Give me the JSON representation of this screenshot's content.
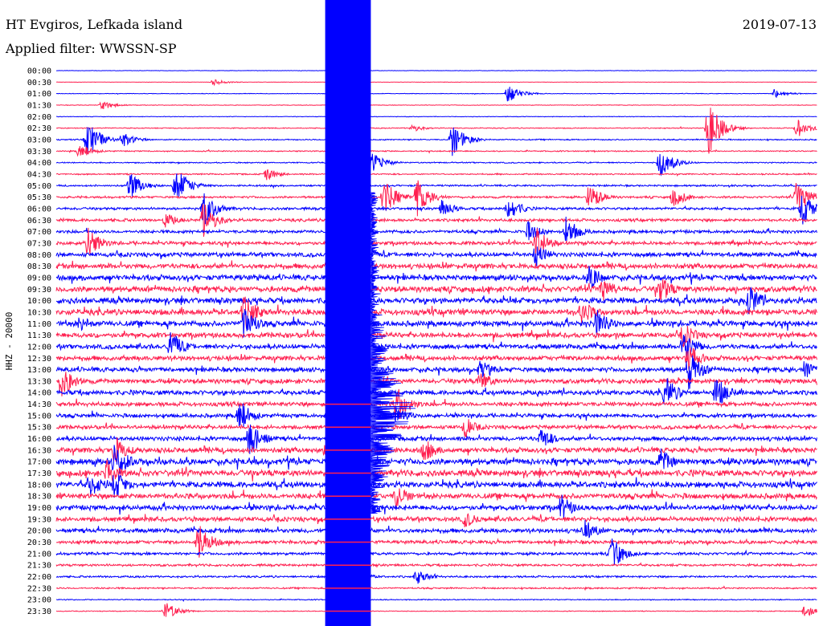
{
  "chart_data": {
    "type": "helicorder",
    "title": "HT Evgiros, Lefkada island",
    "subtitle": "Applied filter: WWSSN-SP",
    "date": "2019-07-13",
    "ylabel": "HHZ - 20000",
    "row_labels": [
      "00:00",
      "00:30",
      "01:00",
      "01:30",
      "02:00",
      "02:30",
      "03:00",
      "03:30",
      "04:00",
      "04:30",
      "05:00",
      "05:30",
      "06:00",
      "06:30",
      "07:00",
      "07:30",
      "08:00",
      "08:30",
      "09:00",
      "09:30",
      "10:00",
      "10:30",
      "11:00",
      "11:30",
      "12:00",
      "12:30",
      "13:00",
      "13:30",
      "14:00",
      "14:30",
      "15:00",
      "15:30",
      "16:00",
      "16:30",
      "17:00",
      "17:30",
      "18:00",
      "18:30",
      "19:00",
      "19:30",
      "20:00",
      "20:30",
      "21:00",
      "21:30",
      "22:00",
      "22:30",
      "23:00",
      "23:30"
    ],
    "row_interval_minutes": 30,
    "colors": {
      "even": "#0000ff",
      "odd": "#ff2050",
      "text": "#000000",
      "background": "#ffffff"
    },
    "row_noise_level": [
      0.2,
      0.2,
      0.3,
      0.3,
      0.3,
      0.5,
      0.6,
      0.6,
      0.6,
      0.7,
      0.9,
      1.1,
      1.3,
      1.5,
      1.6,
      1.8,
      2.2,
      2.6,
      2.8,
      3.0,
      3.0,
      3.0,
      2.8,
      2.6,
      2.4,
      2.4,
      2.4,
      2.4,
      2.4,
      2.2,
      2.0,
      2.0,
      2.2,
      2.6,
      3.2,
      3.2,
      3.0,
      2.8,
      2.6,
      2.4,
      2.2,
      1.8,
      1.4,
      1.2,
      1.0,
      0.8,
      0.5,
      0.4
    ],
    "main_event": {
      "row_start": 0,
      "minute_start": 10.6,
      "minute_end": 12.4,
      "peak_row": 16
    },
    "events": [
      {
        "row": 1,
        "minute": 6.2,
        "amplitude": 4
      },
      {
        "row": 2,
        "minute": 17.8,
        "amplitude": 12
      },
      {
        "row": 2,
        "minute": 28.3,
        "amplitude": 6
      },
      {
        "row": 3,
        "minute": 1.8,
        "amplitude": 6
      },
      {
        "row": 5,
        "minute": 14.0,
        "amplitude": 5
      },
      {
        "row": 5,
        "minute": 25.7,
        "amplitude": 36
      },
      {
        "row": 5,
        "minute": 29.2,
        "amplitude": 12
      },
      {
        "row": 6,
        "minute": 1.2,
        "amplitude": 26
      },
      {
        "row": 6,
        "minute": 2.6,
        "amplitude": 10
      },
      {
        "row": 6,
        "minute": 15.6,
        "amplitude": 22
      },
      {
        "row": 7,
        "minute": 0.9,
        "amplitude": 10
      },
      {
        "row": 8,
        "minute": 12.1,
        "amplitude": 28
      },
      {
        "row": 8,
        "minute": 23.8,
        "amplitude": 22
      },
      {
        "row": 9,
        "minute": 8.3,
        "amplitude": 8
      },
      {
        "row": 10,
        "minute": 2.9,
        "amplitude": 18
      },
      {
        "row": 10,
        "minute": 4.7,
        "amplitude": 26
      },
      {
        "row": 11,
        "minute": 12.9,
        "amplitude": 24
      },
      {
        "row": 11,
        "minute": 14.2,
        "amplitude": 26
      },
      {
        "row": 11,
        "minute": 21.0,
        "amplitude": 18
      },
      {
        "row": 11,
        "minute": 24.3,
        "amplitude": 14
      },
      {
        "row": 11,
        "minute": 29.2,
        "amplitude": 24
      },
      {
        "row": 12,
        "minute": 5.8,
        "amplitude": 24
      },
      {
        "row": 12,
        "minute": 15.2,
        "amplitude": 12
      },
      {
        "row": 12,
        "minute": 17.8,
        "amplitude": 18
      },
      {
        "row": 12,
        "minute": 29.4,
        "amplitude": 22
      },
      {
        "row": 13,
        "minute": 4.3,
        "amplitude": 10
      },
      {
        "row": 13,
        "minute": 5.8,
        "amplitude": 24
      },
      {
        "row": 14,
        "minute": 20.1,
        "amplitude": 20
      },
      {
        "row": 14,
        "minute": 18.6,
        "amplitude": 14
      },
      {
        "row": 15,
        "minute": 1.2,
        "amplitude": 24
      },
      {
        "row": 15,
        "minute": 18.9,
        "amplitude": 22
      },
      {
        "row": 16,
        "minute": 18.9,
        "amplitude": 16
      },
      {
        "row": 18,
        "minute": 21.0,
        "amplitude": 18
      },
      {
        "row": 19,
        "minute": 21.5,
        "amplitude": 18
      },
      {
        "row": 19,
        "minute": 23.8,
        "amplitude": 20
      },
      {
        "row": 20,
        "minute": 27.3,
        "amplitude": 22
      },
      {
        "row": 21,
        "minute": 7.4,
        "amplitude": 26
      },
      {
        "row": 21,
        "minute": 20.7,
        "amplitude": 18
      },
      {
        "row": 22,
        "minute": 0.9,
        "amplitude": 12
      },
      {
        "row": 22,
        "minute": 7.4,
        "amplitude": 24
      },
      {
        "row": 22,
        "minute": 21.3,
        "amplitude": 20
      },
      {
        "row": 23,
        "minute": 24.7,
        "amplitude": 18
      },
      {
        "row": 24,
        "minute": 4.5,
        "amplitude": 22
      },
      {
        "row": 24,
        "minute": 24.7,
        "amplitude": 22
      },
      {
        "row": 25,
        "minute": 24.9,
        "amplitude": 20
      },
      {
        "row": 26,
        "minute": 16.7,
        "amplitude": 14
      },
      {
        "row": 26,
        "minute": 24.9,
        "amplitude": 28
      },
      {
        "row": 26,
        "minute": 29.5,
        "amplitude": 14
      },
      {
        "row": 27,
        "minute": 0.2,
        "amplitude": 24
      },
      {
        "row": 27,
        "minute": 16.7,
        "amplitude": 14
      },
      {
        "row": 28,
        "minute": 24.0,
        "amplitude": 22
      },
      {
        "row": 28,
        "minute": 26.0,
        "amplitude": 22
      },
      {
        "row": 29,
        "minute": 11.5,
        "amplitude": 18
      },
      {
        "row": 29,
        "minute": 13.4,
        "amplitude": 26
      },
      {
        "row": 30,
        "minute": 7.2,
        "amplitude": 22
      },
      {
        "row": 30,
        "minute": 13.4,
        "amplitude": 12
      },
      {
        "row": 31,
        "minute": 16.1,
        "amplitude": 14
      },
      {
        "row": 32,
        "minute": 7.6,
        "amplitude": 26
      },
      {
        "row": 32,
        "minute": 19.1,
        "amplitude": 16
      },
      {
        "row": 33,
        "minute": 2.3,
        "amplitude": 20
      },
      {
        "row": 33,
        "minute": 10.6,
        "amplitude": 12
      },
      {
        "row": 33,
        "minute": 14.5,
        "amplitude": 16
      },
      {
        "row": 34,
        "minute": 2.3,
        "amplitude": 26
      },
      {
        "row": 34,
        "minute": 23.8,
        "amplitude": 18
      },
      {
        "row": 35,
        "minute": 2.0,
        "amplitude": 20
      },
      {
        "row": 36,
        "minute": 1.3,
        "amplitude": 18
      },
      {
        "row": 36,
        "minute": 2.3,
        "amplitude": 20
      },
      {
        "row": 37,
        "minute": 13.4,
        "amplitude": 16
      },
      {
        "row": 38,
        "minute": 19.9,
        "amplitude": 18
      },
      {
        "row": 39,
        "minute": 16.1,
        "amplitude": 12
      },
      {
        "row": 40,
        "minute": 20.8,
        "amplitude": 16
      },
      {
        "row": 41,
        "minute": 5.6,
        "amplitude": 24
      },
      {
        "row": 42,
        "minute": 21.9,
        "amplitude": 22
      },
      {
        "row": 44,
        "minute": 11.8,
        "amplitude": 10
      },
      {
        "row": 44,
        "minute": 14.2,
        "amplitude": 10
      },
      {
        "row": 47,
        "minute": 4.3,
        "amplitude": 12
      },
      {
        "row": 47,
        "minute": 29.5,
        "amplitude": 10
      }
    ]
  }
}
